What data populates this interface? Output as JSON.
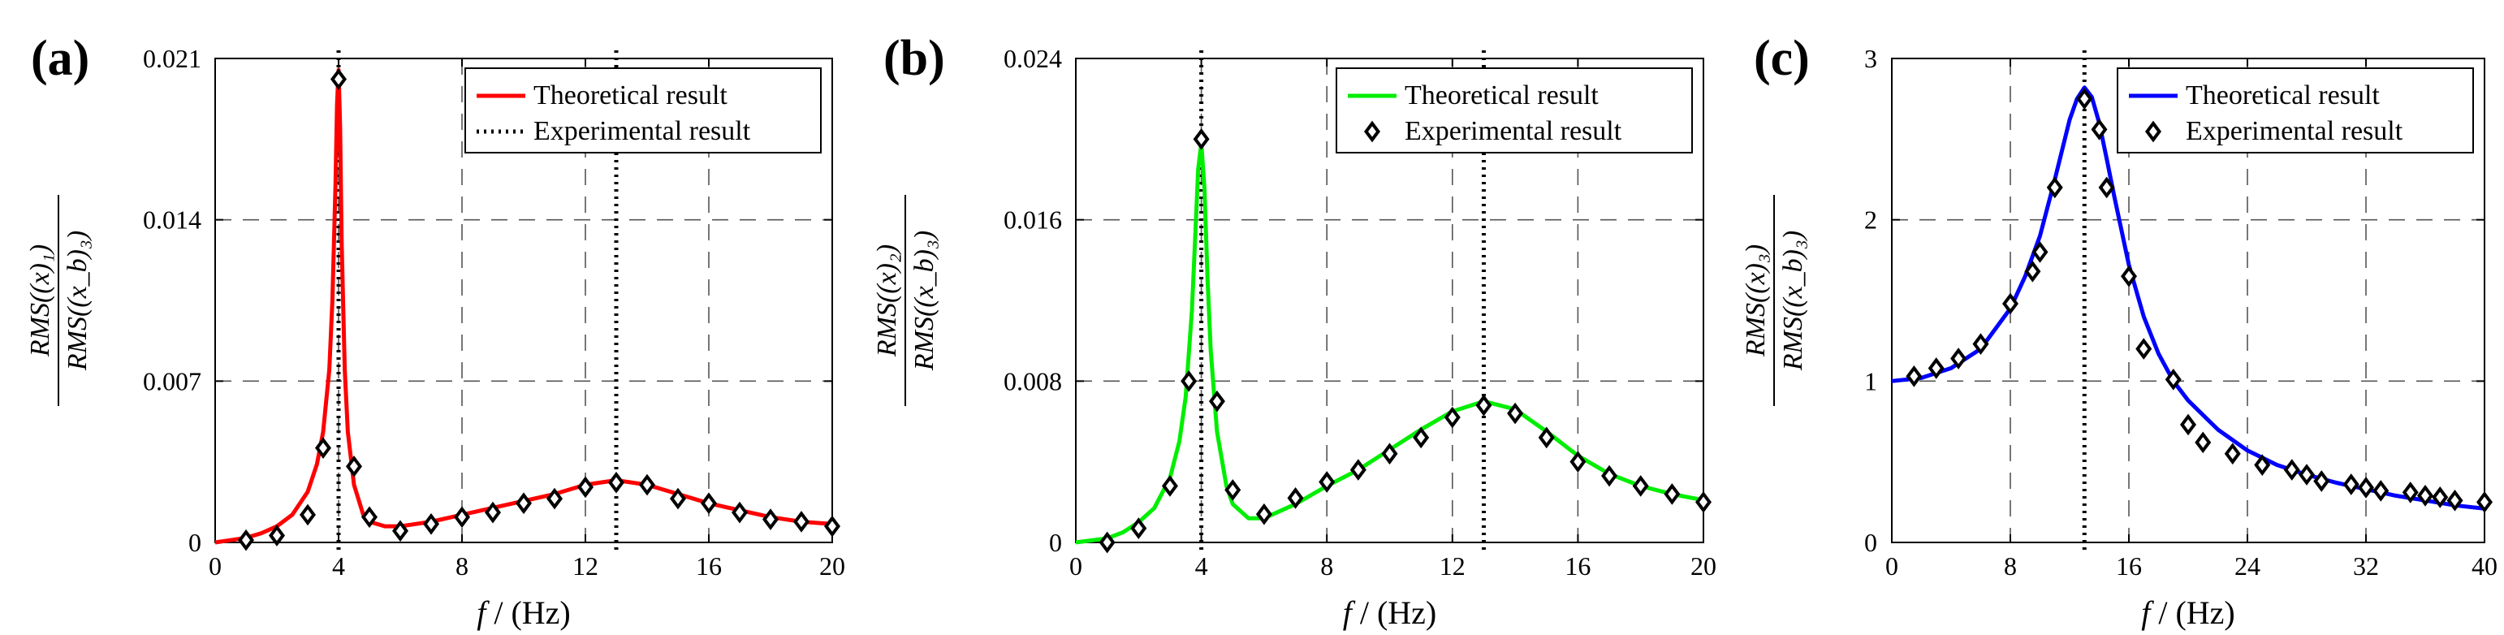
{
  "chart_data": [
    {
      "type": "line",
      "panel_label": "(a)",
      "xlabel": {
        "var": "f",
        "unit": "(Hz)"
      },
      "ylabel": {
        "num": "RMS((x)₁)",
        "den": "RMS((x_b)₃)"
      },
      "xlim": [
        0,
        20
      ],
      "ylim": [
        0,
        0.021
      ],
      "xticks": [
        0,
        4,
        8,
        12,
        16,
        20
      ],
      "yticks": [
        0,
        0.007,
        0.014,
        0.021
      ],
      "xtick_labels": [
        "0",
        "4",
        "8",
        "12",
        "16",
        "20"
      ],
      "ytick_labels": [
        "0",
        "0.007",
        "0.014",
        "0.021"
      ],
      "grid": true,
      "legend_position": "top-right",
      "legend": [
        "Theoretical result",
        "Experimental result"
      ],
      "vlines": [
        4,
        13
      ],
      "line_color": "#ff0000",
      "series": [
        {
          "name": "Theoretical result",
          "x": [
            0,
            0.5,
            1,
            1.5,
            2,
            2.5,
            3,
            3.3,
            3.5,
            3.7,
            3.8,
            3.9,
            3.95,
            4,
            4.05,
            4.1,
            4.2,
            4.3,
            4.5,
            4.8,
            5,
            5.5,
            6,
            7,
            8,
            9,
            10,
            11,
            12,
            13,
            14,
            15,
            16,
            17,
            18,
            19,
            20
          ],
          "y": [
            0,
            0.0001,
            0.0002,
            0.0004,
            0.0007,
            0.0012,
            0.0022,
            0.0034,
            0.0048,
            0.0075,
            0.0105,
            0.0155,
            0.019,
            0.0205,
            0.018,
            0.013,
            0.0075,
            0.0048,
            0.0025,
            0.0012,
            0.0009,
            0.0007,
            0.0007,
            0.0009,
            0.0012,
            0.0015,
            0.0018,
            0.0021,
            0.0025,
            0.0027,
            0.0025,
            0.0021,
            0.0017,
            0.0014,
            0.0011,
            0.0009,
            0.0008
          ]
        },
        {
          "name": "Experimental result",
          "x": [
            1,
            2,
            3,
            3.5,
            4,
            4.5,
            5,
            6,
            7,
            8,
            9,
            10,
            11,
            12,
            13,
            14,
            15,
            16,
            17,
            18,
            19,
            20
          ],
          "y": [
            0.0001,
            0.0003,
            0.0012,
            0.0041,
            0.0201,
            0.0033,
            0.0011,
            0.0005,
            0.0008,
            0.0011,
            0.0013,
            0.0017,
            0.0019,
            0.0024,
            0.0026,
            0.0025,
            0.0019,
            0.0017,
            0.0013,
            0.001,
            0.0009,
            0.0007
          ]
        }
      ]
    },
    {
      "type": "line",
      "panel_label": "(b)",
      "xlabel": {
        "var": "f",
        "unit": "(Hz)"
      },
      "ylabel": {
        "num": "RMS((x)₂)",
        "den": "RMS((x_b)₃)"
      },
      "xlim": [
        0,
        20
      ],
      "ylim": [
        0,
        0.024
      ],
      "xticks": [
        0,
        4,
        8,
        12,
        16,
        20
      ],
      "yticks": [
        0,
        0.008,
        0.016,
        0.024
      ],
      "xtick_labels": [
        "0",
        "4",
        "8",
        "12",
        "16",
        "20"
      ],
      "ytick_labels": [
        "0",
        "0.008",
        "0.016",
        "0.024"
      ],
      "grid": true,
      "legend_position": "top-right",
      "legend": [
        "Theoretical result",
        "Experimental result"
      ],
      "vlines": [
        4,
        13
      ],
      "line_color": "#00ee00",
      "series": [
        {
          "name": "Theoretical result",
          "x": [
            0,
            0.5,
            1,
            1.5,
            2,
            2.5,
            3,
            3.3,
            3.5,
            3.7,
            3.8,
            3.9,
            4,
            4.1,
            4.2,
            4.3,
            4.5,
            4.8,
            5,
            5.5,
            6,
            7,
            8,
            9,
            10,
            11,
            12,
            13,
            14,
            15,
            16,
            17,
            18,
            19,
            20
          ],
          "y": [
            0,
            0.0001,
            0.0002,
            0.0005,
            0.001,
            0.0017,
            0.0032,
            0.005,
            0.0072,
            0.0115,
            0.015,
            0.0185,
            0.0198,
            0.0175,
            0.013,
            0.0095,
            0.0055,
            0.0028,
            0.0019,
            0.0012,
            0.0012,
            0.0019,
            0.0028,
            0.0036,
            0.0046,
            0.0056,
            0.0065,
            0.007,
            0.0066,
            0.0055,
            0.0043,
            0.0034,
            0.0028,
            0.0024,
            0.0021
          ]
        },
        {
          "name": "Experimental result",
          "x": [
            1,
            2,
            3,
            3.6,
            4,
            4.5,
            5,
            6,
            7,
            8,
            9,
            10,
            11,
            12,
            13,
            14,
            15,
            16,
            17,
            18,
            19,
            20
          ],
          "y": [
            0,
            0.0007,
            0.0028,
            0.008,
            0.02,
            0.007,
            0.0026,
            0.0014,
            0.0022,
            0.003,
            0.0036,
            0.0044,
            0.0052,
            0.0062,
            0.0068,
            0.0064,
            0.0052,
            0.004,
            0.0033,
            0.0028,
            0.0024,
            0.002
          ]
        }
      ]
    },
    {
      "type": "line",
      "panel_label": "(c)",
      "xlabel": {
        "var": "f",
        "unit": "(Hz)"
      },
      "ylabel": {
        "num": "RMS((x)₃)",
        "den": "RMS((x_b)₃)"
      },
      "xlim": [
        0,
        40
      ],
      "ylim": [
        0,
        3
      ],
      "xticks": [
        0,
        8,
        16,
        24,
        32,
        40
      ],
      "yticks": [
        0,
        1,
        2,
        3
      ],
      "xtick_labels": [
        "0",
        "8",
        "16",
        "24",
        "32",
        "40"
      ],
      "ytick_labels": [
        "0",
        "1",
        "2",
        "3"
      ],
      "grid": true,
      "legend_position": "top-right",
      "legend": [
        "Theoretical result",
        "Experimental result"
      ],
      "vlines": [
        13
      ],
      "line_color": "#0000ff",
      "series": [
        {
          "name": "Theoretical result",
          "x": [
            0,
            2,
            4,
            6,
            8,
            9,
            10,
            11,
            12,
            12.5,
            13,
            13.5,
            14,
            14.5,
            15,
            16,
            17,
            18,
            19,
            20,
            22,
            24,
            26,
            28,
            30,
            32,
            34,
            36,
            38,
            40
          ],
          "y": [
            1,
            1.02,
            1.08,
            1.2,
            1.45,
            1.65,
            1.9,
            2.25,
            2.62,
            2.75,
            2.82,
            2.76,
            2.6,
            2.38,
            2.15,
            1.72,
            1.4,
            1.17,
            1.0,
            0.88,
            0.7,
            0.57,
            0.48,
            0.42,
            0.37,
            0.33,
            0.29,
            0.26,
            0.23,
            0.21
          ]
        },
        {
          "name": "Experimental result",
          "x": [
            1.5,
            3,
            4.5,
            6,
            8,
            9.5,
            10,
            11,
            13,
            14,
            14.5,
            16,
            17,
            19,
            20,
            21,
            23,
            25,
            27,
            28,
            29,
            31,
            32,
            33,
            35,
            36,
            37,
            38,
            40
          ],
          "y": [
            1.03,
            1.08,
            1.14,
            1.23,
            1.48,
            1.68,
            1.8,
            2.2,
            2.75,
            2.56,
            2.2,
            1.65,
            1.2,
            1.01,
            0.73,
            0.62,
            0.55,
            0.48,
            0.45,
            0.42,
            0.38,
            0.36,
            0.34,
            0.32,
            0.31,
            0.29,
            0.28,
            0.26,
            0.25
          ]
        }
      ]
    }
  ]
}
